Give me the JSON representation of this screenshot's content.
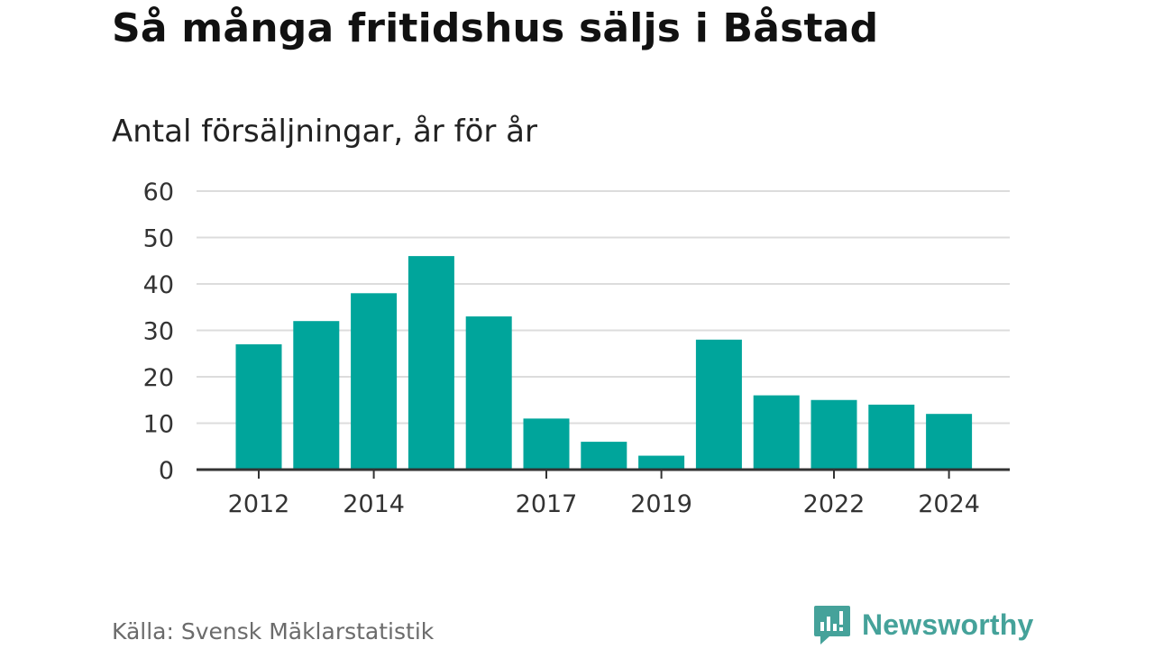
{
  "title": "Så många fritidshus säljs i Båstad",
  "subtitle": "Antal försäljningar, år för år",
  "source": "Källa: Svensk Mäklarstatistik",
  "brand": {
    "name": "Newsworthy",
    "icon": "newsworthy-logo-icon",
    "color": "#45a29a"
  },
  "chart_data": {
    "type": "bar",
    "categories": [
      "2012",
      "2013",
      "2014",
      "2015",
      "2016",
      "2017",
      "2018",
      "2019",
      "2020",
      "2021",
      "2022",
      "2023",
      "2024"
    ],
    "values": [
      27,
      32,
      38,
      46,
      33,
      11,
      6,
      3,
      28,
      16,
      15,
      14,
      12
    ],
    "x_tick_labels": [
      "2012",
      "2014",
      "2017",
      "2019",
      "2022",
      "2024"
    ],
    "y_ticks": [
      0,
      10,
      20,
      30,
      40,
      50,
      60
    ],
    "ylim": [
      0,
      60
    ],
    "grid": true,
    "bar_color": "#00a59b",
    "title": "Så många fritidshus säljs i Båstad",
    "subtitle": "Antal försäljningar, år för år",
    "xlabel": "",
    "ylabel": ""
  }
}
